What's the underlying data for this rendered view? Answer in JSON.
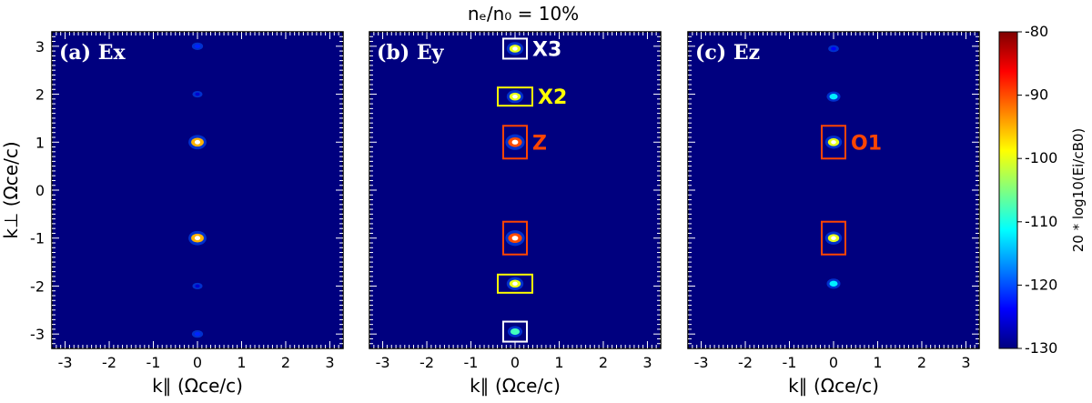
{
  "title": "nₑ/n₀ = 10%",
  "colormap": [
    "#00007f",
    "#0000ff",
    "#0080ff",
    "#00ffff",
    "#80ff80",
    "#ffff00",
    "#ff8000",
    "#ff0000",
    "#7f0000"
  ],
  "chart_data": [
    {
      "type": "heatmap",
      "panel_label": "(a) Ex",
      "xlabel": "k∥ (Ωce/c)",
      "ylabel": "k⊥ (Ωce/c)",
      "xlim": [
        -3.3,
        3.3
      ],
      "ylim": [
        -3.3,
        3.3
      ],
      "xticks": [
        "-3",
        "-2",
        "-1",
        "0",
        "1",
        "2",
        "3"
      ],
      "yticks": [
        "-3",
        "-2",
        "-1",
        "0",
        "1",
        "2",
        "3"
      ],
      "background_db": -130,
      "spots": [
        {
          "kpar": 0.0,
          "kperp": 1.0,
          "db": -95
        },
        {
          "kpar": 0.0,
          "kperp": -1.0,
          "db": -95
        },
        {
          "kpar": 0.0,
          "kperp": 3.0,
          "db": -122
        },
        {
          "kpar": 0.0,
          "kperp": -3.0,
          "db": -122
        },
        {
          "kpar": 0.0,
          "kperp": 2.0,
          "db": -126
        },
        {
          "kpar": 0.0,
          "kperp": -2.0,
          "db": -126
        }
      ],
      "boxes": []
    },
    {
      "type": "heatmap",
      "panel_label": "(b) Ey",
      "xlabel": "k∥ (Ωce/c)",
      "ylabel": "",
      "xlim": [
        -3.3,
        3.3
      ],
      "ylim": [
        -3.3,
        3.3
      ],
      "xticks": [
        "-3",
        "-2",
        "-1",
        "0",
        "1",
        "2",
        "3"
      ],
      "yticks": [],
      "background_db": -130,
      "spots": [
        {
          "kpar": 0.0,
          "kperp": 2.95,
          "db": -100
        },
        {
          "kpar": 0.0,
          "kperp": 1.95,
          "db": -100
        },
        {
          "kpar": 0.0,
          "kperp": 1.0,
          "db": -90
        },
        {
          "kpar": 0.0,
          "kperp": -1.0,
          "db": -90
        },
        {
          "kpar": 0.0,
          "kperp": -1.95,
          "db": -100
        },
        {
          "kpar": 0.0,
          "kperp": -2.95,
          "db": -108
        }
      ],
      "boxes": [
        {
          "kperp": 2.95,
          "color": "#ffffff",
          "label": "X3"
        },
        {
          "kperp": 1.95,
          "color": "#ffff00",
          "label": "X2"
        },
        {
          "kperp": 1.0,
          "color": "#ff4500",
          "label": "Z"
        },
        {
          "kperp": -1.0,
          "color": "#ff4500",
          "label": ""
        },
        {
          "kperp": -1.95,
          "color": "#ffff00",
          "label": ""
        },
        {
          "kperp": -2.95,
          "color": "#ffffff",
          "label": ""
        }
      ]
    },
    {
      "type": "heatmap",
      "panel_label": "(c) Ez",
      "xlabel": "k∥ (Ωce/c)",
      "ylabel": "",
      "xlim": [
        -3.3,
        3.3
      ],
      "ylim": [
        -3.3,
        3.3
      ],
      "xticks": [
        "-3",
        "-2",
        "-1",
        "0",
        "1",
        "2",
        "3"
      ],
      "yticks": [],
      "background_db": -130,
      "spots": [
        {
          "kpar": 0.0,
          "kperp": 1.0,
          "db": -100
        },
        {
          "kpar": 0.0,
          "kperp": -1.0,
          "db": -100
        },
        {
          "kpar": 0.0,
          "kperp": 1.95,
          "db": -112
        },
        {
          "kpar": 0.0,
          "kperp": -1.95,
          "db": -112
        },
        {
          "kpar": 0.0,
          "kperp": 2.95,
          "db": -124
        }
      ],
      "boxes": [
        {
          "kperp": 1.0,
          "color": "#ff4500",
          "label": "O1"
        },
        {
          "kperp": -1.0,
          "color": "#ff4500",
          "label": ""
        }
      ]
    }
  ],
  "colorbar": {
    "min": -130,
    "max": -80,
    "ticks": [
      "-80",
      "-90",
      "-100",
      "-110",
      "-120",
      "-130"
    ],
    "label": "20 * log10(Ei/cB0)"
  }
}
